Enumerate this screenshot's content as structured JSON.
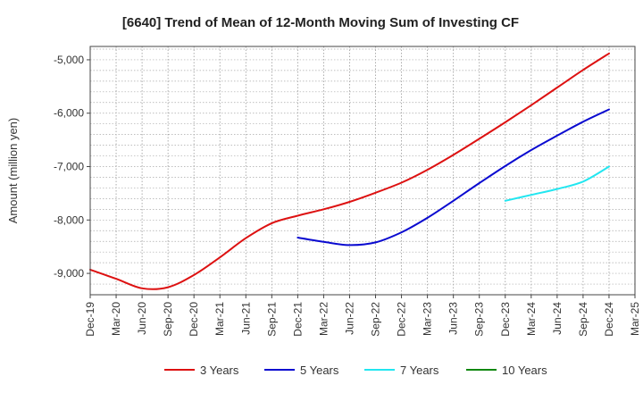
{
  "chart_data": {
    "type": "line",
    "title": "[6640]  Trend of Mean of 12-Month Moving Sum of Investing CF",
    "xlabel": "",
    "ylabel": "Amount (million yen)",
    "ylim": [
      -9400,
      -4750
    ],
    "yticks": [
      -9000,
      -8000,
      -7000,
      -6000,
      -5000
    ],
    "ytick_labels": [
      "-9,000",
      "-8,000",
      "-7,000",
      "-6,000",
      "-5,000"
    ],
    "grid": true,
    "legend_position": "bottom",
    "categories": [
      "Dec-19",
      "Mar-20",
      "Jun-20",
      "Sep-20",
      "Dec-20",
      "Mar-21",
      "Jun-21",
      "Sep-21",
      "Dec-21",
      "Mar-22",
      "Jun-22",
      "Sep-22",
      "Dec-22",
      "Mar-23",
      "Jun-23",
      "Sep-23",
      "Dec-23",
      "Mar-24",
      "Jun-24",
      "Sep-24",
      "Dec-24",
      "Mar-25"
    ],
    "series": [
      {
        "name": "3 Years",
        "color": "#dd1111",
        "values": [
          -8930,
          -9100,
          -9280,
          -9260,
          -9030,
          -8700,
          -8340,
          -8060,
          -7920,
          -7800,
          -7660,
          -7490,
          -7300,
          -7060,
          -6780,
          -6480,
          -6170,
          -5850,
          -5520,
          -5190,
          -4880,
          null
        ]
      },
      {
        "name": "5 Years",
        "color": "#0a0ad0",
        "values": [
          null,
          null,
          null,
          null,
          null,
          null,
          null,
          null,
          -8330,
          -8410,
          -8470,
          -8420,
          -8230,
          -7960,
          -7640,
          -7310,
          -6990,
          -6690,
          -6420,
          -6160,
          -5930,
          null
        ]
      },
      {
        "name": "7 Years",
        "color": "#22e6f0",
        "values": [
          null,
          null,
          null,
          null,
          null,
          null,
          null,
          null,
          null,
          null,
          null,
          null,
          null,
          null,
          null,
          null,
          -7640,
          -7530,
          -7420,
          -7280,
          -7000,
          null
        ]
      },
      {
        "name": "10 Years",
        "color": "#118811",
        "values": [
          null,
          null,
          null,
          null,
          null,
          null,
          null,
          null,
          null,
          null,
          null,
          null,
          null,
          null,
          null,
          null,
          null,
          null,
          null,
          null,
          null,
          null
        ]
      }
    ]
  }
}
